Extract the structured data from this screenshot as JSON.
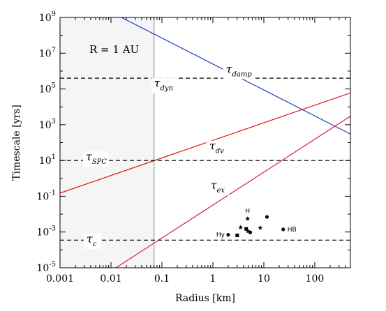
{
  "chart_data": {
    "type": "line",
    "title": "",
    "xlabel": "Radius [km]",
    "ylabel": "Timescale [yrs]",
    "xscale": "log",
    "yscale": "log",
    "xlim": [
      0.001,
      500
    ],
    "ylim": [
      1e-05,
      1000000000.0
    ],
    "grid": false,
    "annotation": "R = 1 AU",
    "shaded_region": {
      "x": [
        0.001,
        0.07
      ],
      "color": "#f5f5f5"
    },
    "vertical_line": {
      "x": 0.07,
      "color": "#999999"
    },
    "x_ticks": [
      {
        "value": 0.001,
        "label": "0.001"
      },
      {
        "value": 0.01,
        "label": "0.01"
      },
      {
        "value": 0.1,
        "label": "0.1"
      },
      {
        "value": 1,
        "label": "1"
      },
      {
        "value": 10,
        "label": "10"
      },
      {
        "value": 100,
        "label": "100"
      }
    ],
    "y_ticks": [
      {
        "value": 1e-05,
        "base": "10",
        "exp": "-5"
      },
      {
        "value": 0.001,
        "base": "10",
        "exp": "-3"
      },
      {
        "value": 0.1,
        "base": "10",
        "exp": "-1"
      },
      {
        "value": 10.0,
        "base": "10",
        "exp": "1"
      },
      {
        "value": 1000.0,
        "base": "10",
        "exp": "3"
      },
      {
        "value": 100000.0,
        "base": "10",
        "exp": "5"
      },
      {
        "value": 10000000.0,
        "base": "10",
        "exp": "7"
      },
      {
        "value": 1000000000.0,
        "base": "10",
        "exp": "9"
      }
    ],
    "series": [
      {
        "symbol": "τ",
        "subscript": "damp",
        "color": "#1a3fbf",
        "style": "solid",
        "points": [
          [
            0.016,
            1000000000.0
          ],
          [
            500,
            300
          ]
        ],
        "label_at": [
          1.8,
          800000.0
        ]
      },
      {
        "symbol": "τ",
        "subscript": "dv",
        "color": "#e01010",
        "style": "solid",
        "points": [
          [
            0.001,
            0.15
          ],
          [
            500,
            60000.0
          ]
        ],
        "label_at": [
          0.85,
          40
        ]
      },
      {
        "symbol": "τ",
        "subscript": "ex",
        "color": "#e0106f",
        "style": "solid",
        "points": [
          [
            0.0125,
            1e-05
          ],
          [
            500,
            3000.0
          ]
        ],
        "label_at": [
          0.9,
          0.25
        ]
      },
      {
        "symbol": "τ",
        "subscript": "dyn",
        "color": "#000000",
        "style": "dashed",
        "points": [
          [
            0.001,
            400000.0
          ],
          [
            500,
            400000.0
          ]
        ],
        "label_at": [
          0.07,
          130000.0
        ]
      },
      {
        "symbol": "τ",
        "subscript": "SPC",
        "color": "#000000",
        "style": "dashed",
        "points": [
          [
            0.001,
            10
          ],
          [
            500,
            10
          ]
        ],
        "label_at": [
          0.0032,
          10
        ]
      },
      {
        "symbol": "τ",
        "subscript": "c",
        "color": "#000000",
        "style": "dashed",
        "points": [
          [
            0.001,
            0.00035
          ],
          [
            500,
            0.00035
          ]
        ],
        "label_at": [
          0.0033,
          0.00025
        ]
      }
    ],
    "scatter_points": [
      {
        "x": 4.8,
        "y": 0.0055,
        "marker": "star",
        "label": "H"
      },
      {
        "x": 3.5,
        "y": 0.0018,
        "marker": "star",
        "label": ""
      },
      {
        "x": 4.5,
        "y": 0.0015,
        "marker": "square",
        "label": ""
      },
      {
        "x": 4.9,
        "y": 0.0011,
        "marker": "star",
        "label": ""
      },
      {
        "x": 5.4,
        "y": 0.00095,
        "marker": "circle",
        "label": ""
      },
      {
        "x": 3.0,
        "y": 0.00065,
        "marker": "square",
        "label": ""
      },
      {
        "x": 2.0,
        "y": 0.0007,
        "marker": "circle",
        "label": "Hy"
      },
      {
        "x": 8.5,
        "y": 0.0017,
        "marker": "star",
        "label": ""
      },
      {
        "x": 11.5,
        "y": 0.007,
        "marker": "circle",
        "label": ""
      },
      {
        "x": 24,
        "y": 0.0014,
        "marker": "circle",
        "label": "HB"
      }
    ]
  }
}
